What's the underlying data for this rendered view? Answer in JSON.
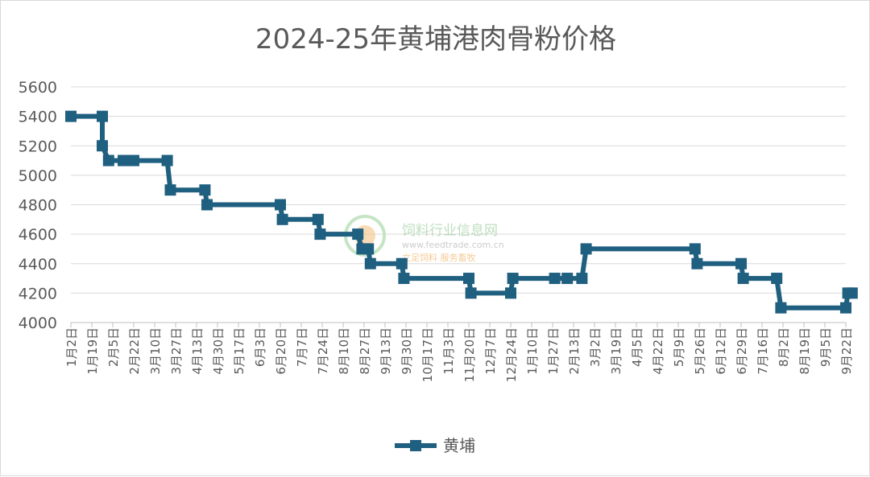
{
  "chart_data": {
    "type": "line",
    "title": "2024-25年黄埔港肉骨粉价格",
    "xlabel": "",
    "ylabel": "",
    "ylim": [
      4000,
      5600
    ],
    "yticks": [
      4000,
      4200,
      4400,
      4600,
      4800,
      5000,
      5200,
      5400,
      5600
    ],
    "grid": true,
    "legend_position": "bottom",
    "line_color": "#1f5f7f",
    "categories": [
      "1月2日",
      "1月19日",
      "2月5日",
      "2月22日",
      "3月10日",
      "3月27日",
      "4月13日",
      "4月30日",
      "5月17日",
      "6月3日",
      "6月20日",
      "7月7日",
      "7月24日",
      "8月10日",
      "8月27日",
      "9月13日",
      "9月30日",
      "10月17日",
      "11月3日",
      "11月20日",
      "12月7日",
      "12月24日",
      "1月10日",
      "1月27日",
      "2月13日",
      "3月2日",
      "3月19日",
      "4月5日",
      "4月22日",
      "5月9日",
      "5月26日",
      "6月12日",
      "6月29日",
      "7月16日",
      "8月2日",
      "8月19日",
      "9月5日",
      "9月22日"
    ],
    "series": [
      {
        "name": "黄埔",
        "points": [
          [
            0,
            5400
          ],
          [
            1.5,
            5400
          ],
          [
            1.5,
            5200
          ],
          [
            1.8,
            5100
          ],
          [
            2.5,
            5100
          ],
          [
            3,
            5100
          ],
          [
            4.6,
            5100
          ],
          [
            4.75,
            4900
          ],
          [
            6.4,
            4900
          ],
          [
            6.5,
            4800
          ],
          [
            10,
            4800
          ],
          [
            10.1,
            4700
          ],
          [
            11.8,
            4700
          ],
          [
            11.9,
            4600
          ],
          [
            13.7,
            4600
          ],
          [
            13.9,
            4500
          ],
          [
            14.2,
            4500
          ],
          [
            14.3,
            4400
          ],
          [
            15.8,
            4400
          ],
          [
            15.9,
            4300
          ],
          [
            19.0,
            4300
          ],
          [
            19.1,
            4200
          ],
          [
            21.0,
            4200
          ],
          [
            21.1,
            4300
          ],
          [
            23.1,
            4300
          ],
          [
            23.7,
            4300
          ],
          [
            24.4,
            4300
          ],
          [
            24.6,
            4500
          ],
          [
            29.8,
            4500
          ],
          [
            29.9,
            4400
          ],
          [
            32.0,
            4400
          ],
          [
            32.1,
            4300
          ],
          [
            33.7,
            4300
          ],
          [
            33.9,
            4100
          ],
          [
            37.0,
            4100
          ],
          [
            37.1,
            4200
          ],
          [
            37.3,
            4200
          ]
        ]
      }
    ]
  },
  "watermark": {
    "name": "饲料行业信息网",
    "url": "www.feedtrade.com.cn",
    "slogan": "立足饲料  服务畜牧"
  }
}
